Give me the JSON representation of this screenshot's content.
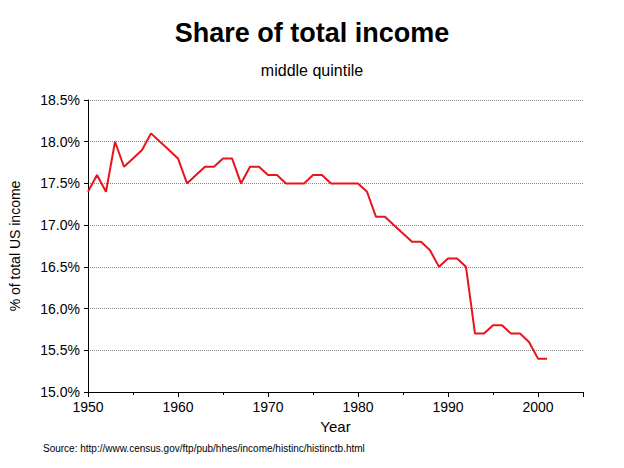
{
  "chart_data": {
    "type": "line",
    "title": "Share of total income",
    "subtitle": "middle quintile",
    "x_label": "Year",
    "y_label": "% of total US income",
    "source": "Source: http://www.census.gov/ftp/pub/hhes/income/histinc/histinctb.html",
    "color": "#e8141c",
    "grid": true,
    "x": [
      1950,
      1951,
      1952,
      1953,
      1954,
      1955,
      1956,
      1957,
      1958,
      1959,
      1960,
      1961,
      1962,
      1963,
      1964,
      1965,
      1966,
      1967,
      1968,
      1969,
      1970,
      1971,
      1972,
      1973,
      1974,
      1975,
      1976,
      1977,
      1978,
      1979,
      1980,
      1981,
      1982,
      1983,
      1984,
      1985,
      1986,
      1987,
      1988,
      1989,
      1990,
      1991,
      1992,
      1993,
      1994,
      1995,
      1996,
      1997,
      1998,
      1999,
      2000,
      2001
    ],
    "values": [
      17.4,
      17.6,
      17.4,
      18.0,
      17.7,
      17.8,
      17.9,
      18.1,
      18.0,
      17.9,
      17.8,
      17.5,
      17.6,
      17.7,
      17.7,
      17.8,
      17.8,
      17.5,
      17.7,
      17.7,
      17.6,
      17.6,
      17.5,
      17.5,
      17.5,
      17.6,
      17.6,
      17.5,
      17.5,
      17.5,
      17.5,
      17.4,
      17.1,
      17.1,
      17.0,
      16.9,
      16.8,
      16.8,
      16.7,
      16.5,
      16.6,
      16.6,
      16.5,
      15.7,
      15.7,
      15.8,
      15.8,
      15.7,
      15.7,
      15.6,
      15.4,
      15.4
    ],
    "xlim": [
      1950,
      2005
    ],
    "xticks": [
      1950,
      1960,
      1970,
      1980,
      1990,
      2000
    ],
    "ylim": [
      15.0,
      18.5
    ],
    "yticks": [
      {
        "value": 15.0,
        "label": "15.0%"
      },
      {
        "value": 15.5,
        "label": "15.5%"
      },
      {
        "value": 16.0,
        "label": "16.0%"
      },
      {
        "value": 16.5,
        "label": "16.5%"
      },
      {
        "value": 17.0,
        "label": "17.0%"
      },
      {
        "value": 17.5,
        "label": "17.5%"
      },
      {
        "value": 18.0,
        "label": "18.0%"
      },
      {
        "value": 18.5,
        "label": "18.5%"
      }
    ]
  }
}
